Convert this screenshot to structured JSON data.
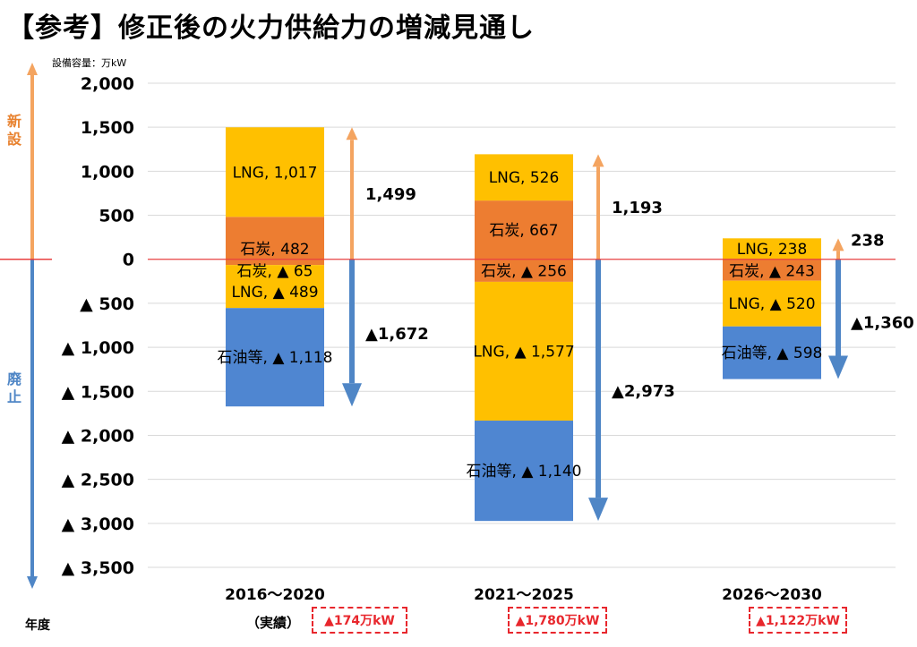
{
  "page": {
    "title": "【参考】修正後の火力供給力の増減見通し",
    "unit_label": "設備容量：万kW",
    "year_axis_label": "年度",
    "side_labels": {
      "new": "新設",
      "retire": "廃止"
    },
    "colors": {
      "lng": "#ffc000",
      "coal": "#ed7d31",
      "oil": "#4f86d1",
      "up_arrow": "#f4a460",
      "down_arrow": "#4f86c6",
      "zero_line": "#e84040",
      "net_box": "#e8272d"
    }
  },
  "chart_data": {
    "type": "bar",
    "stacked": true,
    "ylabel": "設備容量：万kW",
    "ylim": [
      -3500,
      2000
    ],
    "y_ticks": [
      {
        "value": 2000,
        "label": "2,000"
      },
      {
        "value": 1500,
        "label": "1,500"
      },
      {
        "value": 1000,
        "label": "1,000"
      },
      {
        "value": 500,
        "label": "500"
      },
      {
        "value": 0,
        "label": "0"
      },
      {
        "value": -500,
        "label": "▲ 500"
      },
      {
        "value": -1000,
        "label": "▲ 1,000"
      },
      {
        "value": -1500,
        "label": "▲ 1,500"
      },
      {
        "value": -2000,
        "label": "▲ 2,000"
      },
      {
        "value": -2500,
        "label": "▲ 2,500"
      },
      {
        "value": -3000,
        "label": "▲ 3,000"
      },
      {
        "value": -3500,
        "label": "▲ 3,500"
      }
    ],
    "grid": true,
    "categories": [
      {
        "label": "2016～2020",
        "sublabel": "（実績）",
        "positive": [
          {
            "fuel": "coal",
            "value": 482,
            "label": "石炭, 482"
          },
          {
            "fuel": "lng",
            "value": 1017,
            "label": "LNG, 1,017"
          }
        ],
        "negative": [
          {
            "fuel": "coal",
            "value": -65,
            "label": "石炭, ▲ 65"
          },
          {
            "fuel": "lng",
            "value": -489,
            "label": "LNG, ▲ 489"
          },
          {
            "fuel": "oil",
            "value": -1118,
            "label": "石油等, ▲ 1,118"
          }
        ],
        "total_new": 1499,
        "total_new_label": "1,499",
        "total_retired": -1672,
        "total_retired_label": "▲1,672",
        "net_label": "▲174万kW"
      },
      {
        "label": "2021～2025",
        "sublabel": "",
        "positive": [
          {
            "fuel": "coal",
            "value": 667,
            "label": "石炭, 667"
          },
          {
            "fuel": "lng",
            "value": 526,
            "label": "LNG, 526"
          }
        ],
        "negative": [
          {
            "fuel": "coal",
            "value": -256,
            "label": "石炭, ▲ 256"
          },
          {
            "fuel": "lng",
            "value": -1577,
            "label": "LNG, ▲ 1,577"
          },
          {
            "fuel": "oil",
            "value": -1140,
            "label": "石油等, ▲ 1,140"
          }
        ],
        "total_new": 1193,
        "total_new_label": "1,193",
        "total_retired": -2973,
        "total_retired_label": "▲2,973",
        "net_label": "▲1,780万kW"
      },
      {
        "label": "2026～2030",
        "sublabel": "",
        "positive": [
          {
            "fuel": "lng",
            "value": 238,
            "label": "LNG, 238"
          }
        ],
        "negative": [
          {
            "fuel": "coal",
            "value": -243,
            "label": "石炭, ▲ 243"
          },
          {
            "fuel": "lng",
            "value": -520,
            "label": "LNG, ▲ 520"
          },
          {
            "fuel": "oil",
            "value": -598,
            "label": "石油等, ▲ 598"
          }
        ],
        "total_new": 238,
        "total_new_label": "238",
        "total_retired": -1360,
        "total_retired_label": "▲1,360",
        "net_label": "▲1,122万kW"
      }
    ]
  }
}
